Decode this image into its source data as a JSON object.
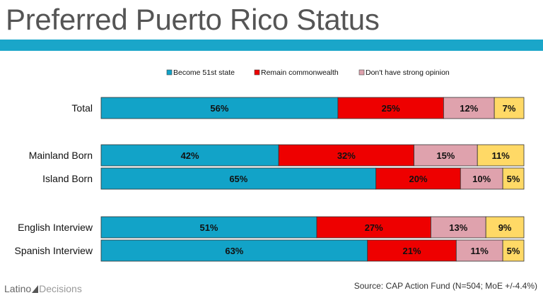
{
  "header": {
    "title": "Preferred Puerto Rico Status"
  },
  "footer": {
    "logo_first": "Latino",
    "logo_second": "Decisions",
    "source": "Source: CAP Action Fund (N=504; MoE +/-4.4%)"
  },
  "chart_data": {
    "type": "bar",
    "orientation": "horizontal",
    "stacked": true,
    "legend_position": "top",
    "xlim": [
      0,
      100
    ],
    "categories": [
      "Total",
      "Mainland Born",
      "Island Born",
      "English Interview",
      "Spanish Interview"
    ],
    "series": [
      {
        "name": "Become 51st state",
        "color": "#12a3c8",
        "values": [
          56,
          42,
          65,
          51,
          63
        ],
        "labels": [
          "56%",
          "42%",
          "65%",
          "51%",
          "63%"
        ]
      },
      {
        "name": "Remain commonwealth",
        "color": "#ee0000",
        "values": [
          25,
          32,
          20,
          27,
          21
        ],
        "labels": [
          "25%",
          "32%",
          "20%",
          "27%",
          "21%"
        ]
      },
      {
        "name": "Don't have strong opinion",
        "color": "#dfa2ad",
        "values": [
          12,
          15,
          10,
          13,
          11
        ],
        "labels": [
          "12%",
          "15%",
          "10%",
          "13%",
          "11%"
        ]
      },
      {
        "name": "",
        "color": "#ffd966",
        "values": [
          7,
          11,
          5,
          9,
          5
        ],
        "labels": [
          "7%",
          "11%",
          "5%",
          "9%",
          "5%"
        ]
      }
    ]
  }
}
